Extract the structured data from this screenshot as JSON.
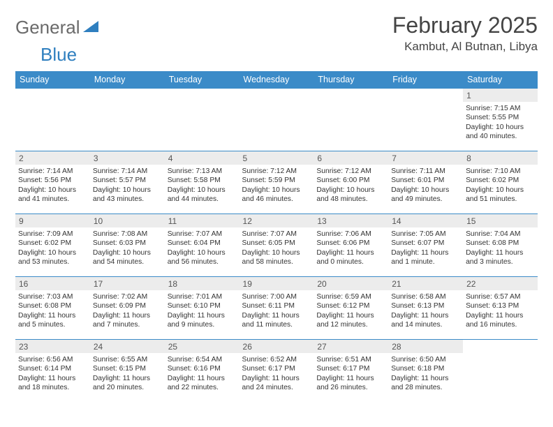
{
  "brand": {
    "part1": "General",
    "part2": "Blue"
  },
  "title": "February 2025",
  "location": "Kambut, Al Butnan, Libya",
  "colors": {
    "header_bg": "#3b8bc8",
    "header_text": "#ffffff",
    "daynum_bg": "#ececec",
    "border": "#3b8bc8",
    "brand_gray": "#6a6a6a",
    "brand_blue": "#2f7fbf"
  },
  "day_headers": [
    "Sunday",
    "Monday",
    "Tuesday",
    "Wednesday",
    "Thursday",
    "Friday",
    "Saturday"
  ],
  "weeks": [
    [
      {
        "n": "",
        "sr": "",
        "ss": "",
        "dl": ""
      },
      {
        "n": "",
        "sr": "",
        "ss": "",
        "dl": ""
      },
      {
        "n": "",
        "sr": "",
        "ss": "",
        "dl": ""
      },
      {
        "n": "",
        "sr": "",
        "ss": "",
        "dl": ""
      },
      {
        "n": "",
        "sr": "",
        "ss": "",
        "dl": ""
      },
      {
        "n": "",
        "sr": "",
        "ss": "",
        "dl": ""
      },
      {
        "n": "1",
        "sr": "Sunrise: 7:15 AM",
        "ss": "Sunset: 5:55 PM",
        "dl": "Daylight: 10 hours and 40 minutes."
      }
    ],
    [
      {
        "n": "2",
        "sr": "Sunrise: 7:14 AM",
        "ss": "Sunset: 5:56 PM",
        "dl": "Daylight: 10 hours and 41 minutes."
      },
      {
        "n": "3",
        "sr": "Sunrise: 7:14 AM",
        "ss": "Sunset: 5:57 PM",
        "dl": "Daylight: 10 hours and 43 minutes."
      },
      {
        "n": "4",
        "sr": "Sunrise: 7:13 AM",
        "ss": "Sunset: 5:58 PM",
        "dl": "Daylight: 10 hours and 44 minutes."
      },
      {
        "n": "5",
        "sr": "Sunrise: 7:12 AM",
        "ss": "Sunset: 5:59 PM",
        "dl": "Daylight: 10 hours and 46 minutes."
      },
      {
        "n": "6",
        "sr": "Sunrise: 7:12 AM",
        "ss": "Sunset: 6:00 PM",
        "dl": "Daylight: 10 hours and 48 minutes."
      },
      {
        "n": "7",
        "sr": "Sunrise: 7:11 AM",
        "ss": "Sunset: 6:01 PM",
        "dl": "Daylight: 10 hours and 49 minutes."
      },
      {
        "n": "8",
        "sr": "Sunrise: 7:10 AM",
        "ss": "Sunset: 6:02 PM",
        "dl": "Daylight: 10 hours and 51 minutes."
      }
    ],
    [
      {
        "n": "9",
        "sr": "Sunrise: 7:09 AM",
        "ss": "Sunset: 6:02 PM",
        "dl": "Daylight: 10 hours and 53 minutes."
      },
      {
        "n": "10",
        "sr": "Sunrise: 7:08 AM",
        "ss": "Sunset: 6:03 PM",
        "dl": "Daylight: 10 hours and 54 minutes."
      },
      {
        "n": "11",
        "sr": "Sunrise: 7:07 AM",
        "ss": "Sunset: 6:04 PM",
        "dl": "Daylight: 10 hours and 56 minutes."
      },
      {
        "n": "12",
        "sr": "Sunrise: 7:07 AM",
        "ss": "Sunset: 6:05 PM",
        "dl": "Daylight: 10 hours and 58 minutes."
      },
      {
        "n": "13",
        "sr": "Sunrise: 7:06 AM",
        "ss": "Sunset: 6:06 PM",
        "dl": "Daylight: 11 hours and 0 minutes."
      },
      {
        "n": "14",
        "sr": "Sunrise: 7:05 AM",
        "ss": "Sunset: 6:07 PM",
        "dl": "Daylight: 11 hours and 1 minute."
      },
      {
        "n": "15",
        "sr": "Sunrise: 7:04 AM",
        "ss": "Sunset: 6:08 PM",
        "dl": "Daylight: 11 hours and 3 minutes."
      }
    ],
    [
      {
        "n": "16",
        "sr": "Sunrise: 7:03 AM",
        "ss": "Sunset: 6:08 PM",
        "dl": "Daylight: 11 hours and 5 minutes."
      },
      {
        "n": "17",
        "sr": "Sunrise: 7:02 AM",
        "ss": "Sunset: 6:09 PM",
        "dl": "Daylight: 11 hours and 7 minutes."
      },
      {
        "n": "18",
        "sr": "Sunrise: 7:01 AM",
        "ss": "Sunset: 6:10 PM",
        "dl": "Daylight: 11 hours and 9 minutes."
      },
      {
        "n": "19",
        "sr": "Sunrise: 7:00 AM",
        "ss": "Sunset: 6:11 PM",
        "dl": "Daylight: 11 hours and 11 minutes."
      },
      {
        "n": "20",
        "sr": "Sunrise: 6:59 AM",
        "ss": "Sunset: 6:12 PM",
        "dl": "Daylight: 11 hours and 12 minutes."
      },
      {
        "n": "21",
        "sr": "Sunrise: 6:58 AM",
        "ss": "Sunset: 6:13 PM",
        "dl": "Daylight: 11 hours and 14 minutes."
      },
      {
        "n": "22",
        "sr": "Sunrise: 6:57 AM",
        "ss": "Sunset: 6:13 PM",
        "dl": "Daylight: 11 hours and 16 minutes."
      }
    ],
    [
      {
        "n": "23",
        "sr": "Sunrise: 6:56 AM",
        "ss": "Sunset: 6:14 PM",
        "dl": "Daylight: 11 hours and 18 minutes."
      },
      {
        "n": "24",
        "sr": "Sunrise: 6:55 AM",
        "ss": "Sunset: 6:15 PM",
        "dl": "Daylight: 11 hours and 20 minutes."
      },
      {
        "n": "25",
        "sr": "Sunrise: 6:54 AM",
        "ss": "Sunset: 6:16 PM",
        "dl": "Daylight: 11 hours and 22 minutes."
      },
      {
        "n": "26",
        "sr": "Sunrise: 6:52 AM",
        "ss": "Sunset: 6:17 PM",
        "dl": "Daylight: 11 hours and 24 minutes."
      },
      {
        "n": "27",
        "sr": "Sunrise: 6:51 AM",
        "ss": "Sunset: 6:17 PM",
        "dl": "Daylight: 11 hours and 26 minutes."
      },
      {
        "n": "28",
        "sr": "Sunrise: 6:50 AM",
        "ss": "Sunset: 6:18 PM",
        "dl": "Daylight: 11 hours and 28 minutes."
      },
      {
        "n": "",
        "sr": "",
        "ss": "",
        "dl": ""
      }
    ]
  ]
}
